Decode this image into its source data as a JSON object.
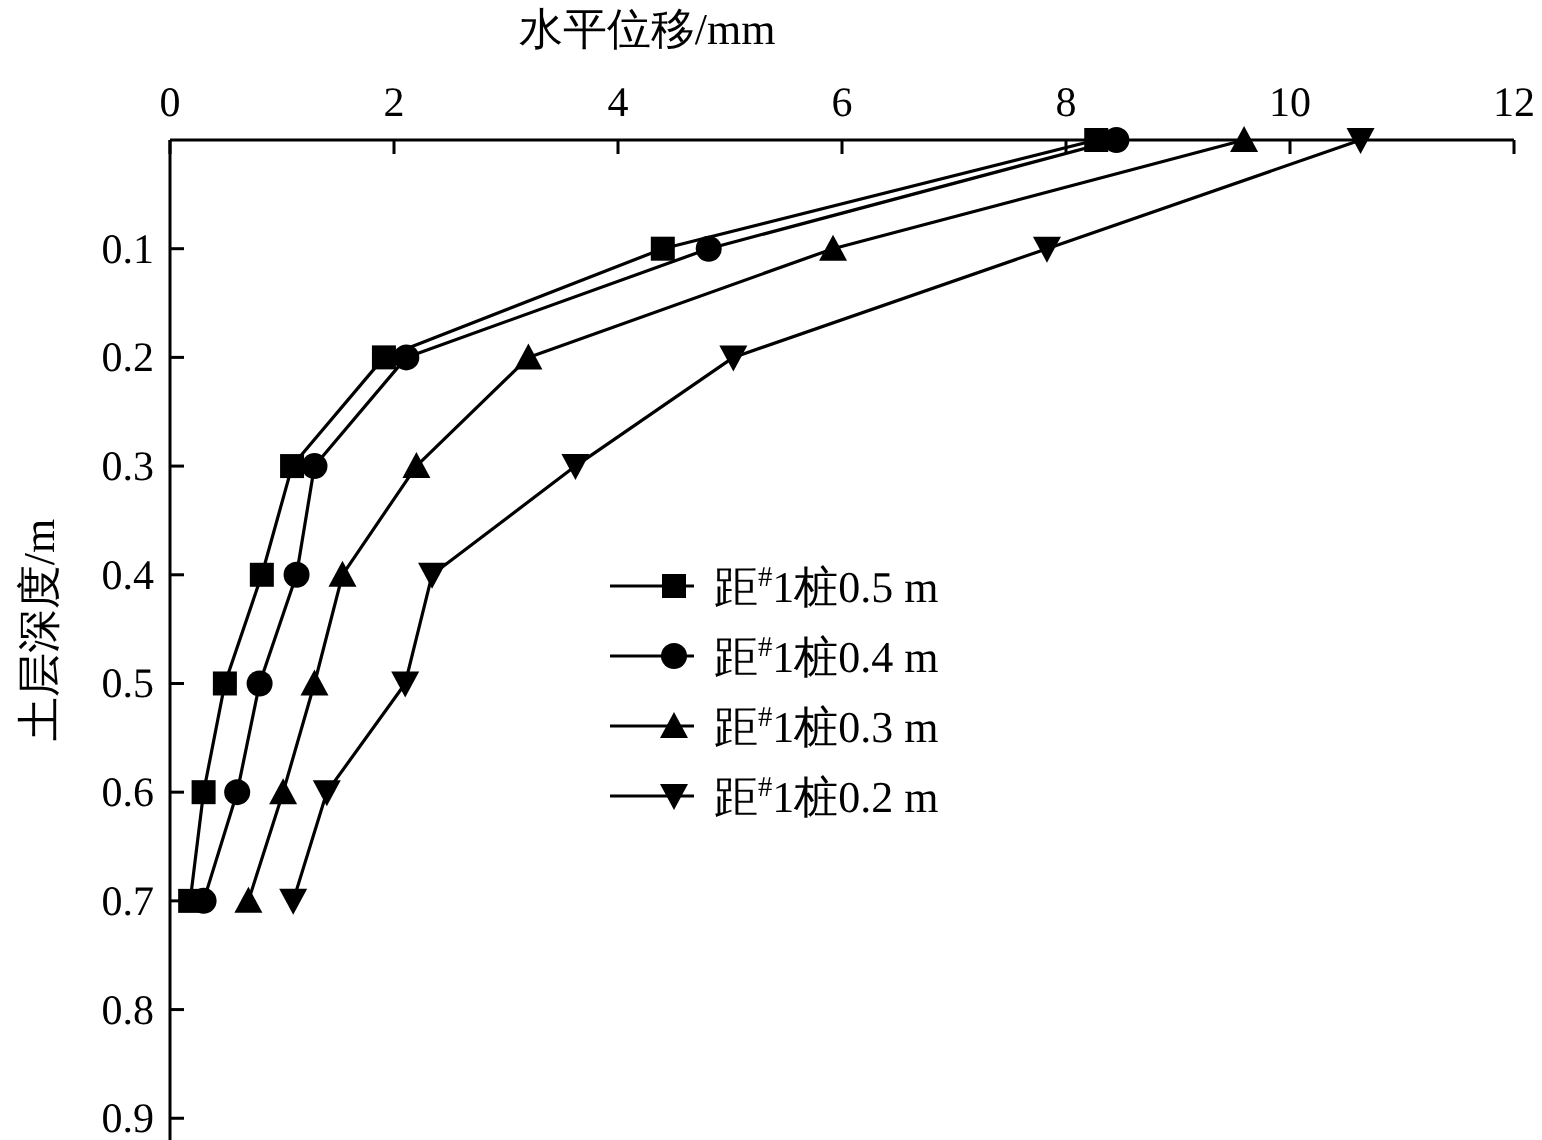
{
  "chart_data": {
    "type": "line",
    "xlabel": "水平位移/mm",
    "ylabel": "土层深度/m",
    "series": [
      {
        "name": "距$^{#}$1桩0.5 m",
        "color": "#000000",
        "marker": "square",
        "x": [
          8.27,
          4.4,
          1.91,
          1.09,
          0.82,
          0.49,
          0.3,
          0.18
        ],
        "values": [
          0,
          0.1,
          0.2,
          0.3,
          0.4,
          0.5,
          0.6,
          0.7
        ]
      },
      {
        "name": "距$^{#}$1桩0.4 m",
        "color": "#000000",
        "marker": "circle",
        "x": [
          8.45,
          4.81,
          2.11,
          1.29,
          1.13,
          0.8,
          0.6,
          0.3
        ],
        "values": [
          0,
          0.1,
          0.2,
          0.3,
          0.4,
          0.5,
          0.6,
          0.7
        ]
      },
      {
        "name": "距$^{#}$1桩0.3 m",
        "color": "#000000",
        "marker": "triangle",
        "x": [
          9.59,
          5.92,
          3.2,
          2.2,
          1.54,
          1.29,
          1.01,
          0.7
        ],
        "values": [
          0,
          0.1,
          0.2,
          0.3,
          0.4,
          0.5,
          0.6,
          0.7
        ]
      },
      {
        "name": "距$^{#}$1桩0.2 m",
        "color": "#000000",
        "marker": "triangle_down",
        "x": [
          10.63,
          7.83,
          5.03,
          3.62,
          2.34,
          2.1,
          1.4,
          1.1
        ],
        "values": [
          0,
          0.1,
          0.2,
          0.3,
          0.4,
          0.5,
          0.6,
          0.7
        ]
      }
    ],
    "xlim": [
      0,
      12
    ],
    "xticks": [
      0,
      2,
      4,
      6,
      8,
      10,
      12
    ],
    "ylim": [
      0.92,
      0
    ],
    "yticks": [
      0.1,
      0.2,
      0.3,
      0.4,
      0.5,
      0.6,
      0.7,
      0.8,
      0.9
    ],
    "grid": false,
    "legend": "left",
    "line_style": "solid"
  }
}
